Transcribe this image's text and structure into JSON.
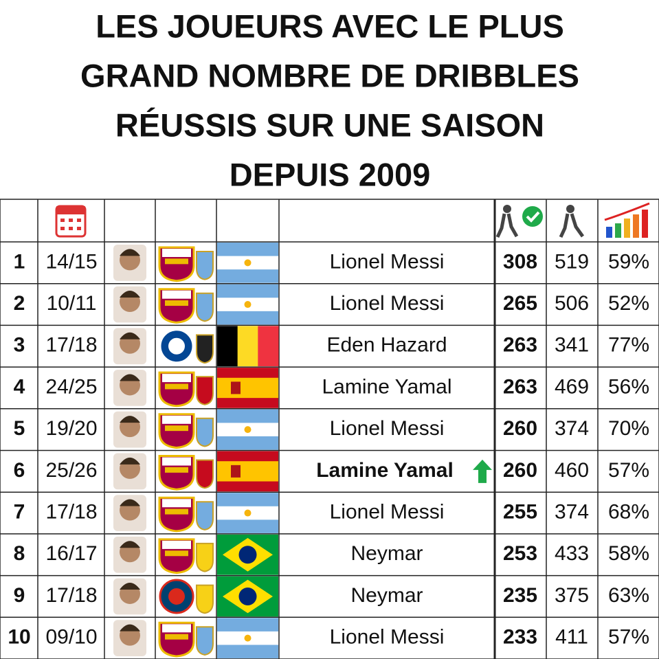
{
  "title": {
    "lines": [
      "LES JOUEURS AVEC LE PLUS",
      "GRAND NOMBRE DE DRIBBLES",
      "RÉUSSIS SUR UNE SAISON",
      "DEPUIS 2009"
    ]
  },
  "table": {
    "rows": [
      {
        "rank": 1,
        "season": "14/15",
        "player": "Lionel Messi",
        "successful": 308,
        "attempted": 519,
        "rate": "59%"
      },
      {
        "rank": 2,
        "season": "10/11",
        "player": "Lionel Messi",
        "successful": 265,
        "attempted": 506,
        "rate": "52%"
      },
      {
        "rank": 3,
        "season": "17/18",
        "player": "Eden Hazard",
        "successful": 263,
        "attempted": 341,
        "rate": "77%"
      },
      {
        "rank": 4,
        "season": "24/25",
        "player": "Lamine Yamal",
        "successful": 263,
        "attempted": 469,
        "rate": "56%"
      },
      {
        "rank": 5,
        "season": "19/20",
        "player": "Lionel Messi",
        "successful": 260,
        "attempted": 374,
        "rate": "70%"
      },
      {
        "rank": 6,
        "season": "25/26",
        "player": "Lamine Yamal",
        "successful": 260,
        "attempted": 460,
        "rate": "57%"
      },
      {
        "rank": 7,
        "season": "17/18",
        "player": "Lionel Messi",
        "successful": 255,
        "attempted": 374,
        "rate": "68%"
      },
      {
        "rank": 8,
        "season": "16/17",
        "player": "Neymar",
        "successful": 253,
        "attempted": 433,
        "rate": "58%"
      },
      {
        "rank": 9,
        "season": "17/18",
        "player": "Neymar",
        "successful": 235,
        "attempted": 375,
        "rate": "63%"
      },
      {
        "rank": 10,
        "season": "09/10",
        "player": "Lionel Messi",
        "successful": 233,
        "attempted": 411,
        "rate": "57%"
      }
    ]
  }
}
